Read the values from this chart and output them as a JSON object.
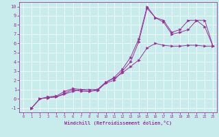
{
  "bg_color": "#c8ecec",
  "line_color": "#993399",
  "xlabel": "Windchill (Refroidissement éolien,°C)",
  "xlim": [
    -0.5,
    23.5
  ],
  "ylim": [
    -1.5,
    10.5
  ],
  "xticks": [
    0,
    1,
    2,
    3,
    4,
    5,
    6,
    7,
    8,
    9,
    10,
    11,
    12,
    13,
    14,
    15,
    16,
    17,
    18,
    19,
    20,
    21,
    22,
    23
  ],
  "yticks": [
    -1,
    0,
    1,
    2,
    3,
    4,
    5,
    6,
    7,
    8,
    9,
    10
  ],
  "line1_x": [
    1,
    2,
    3,
    4,
    5,
    6,
    7,
    8,
    9,
    10,
    11,
    12,
    13,
    14,
    15,
    16,
    17,
    18,
    19,
    20,
    21,
    22,
    23
  ],
  "line1_y": [
    -1.0,
    0.0,
    0.1,
    0.2,
    0.5,
    0.8,
    1.0,
    1.0,
    1.0,
    1.8,
    2.2,
    2.8,
    3.5,
    4.2,
    5.5,
    6.0,
    5.8,
    5.7,
    5.7,
    5.8,
    5.8,
    5.7,
    5.7
  ],
  "line2_x": [
    1,
    2,
    3,
    4,
    5,
    6,
    7,
    8,
    9,
    10,
    11,
    12,
    13,
    14,
    15,
    16,
    17,
    18,
    19,
    20,
    21,
    22,
    23
  ],
  "line2_y": [
    -1.0,
    0.0,
    0.2,
    0.3,
    0.8,
    1.1,
    1.0,
    0.8,
    1.0,
    1.8,
    2.3,
    3.2,
    4.5,
    6.5,
    10.0,
    8.8,
    8.5,
    7.2,
    7.5,
    8.5,
    8.5,
    7.8,
    5.7
  ],
  "line3_x": [
    1,
    2,
    3,
    4,
    5,
    6,
    7,
    8,
    9,
    10,
    11,
    12,
    13,
    14,
    15,
    16,
    17,
    18,
    19,
    20,
    21,
    22,
    23
  ],
  "line3_y": [
    -1.0,
    0.0,
    0.1,
    0.2,
    0.6,
    1.0,
    0.8,
    0.8,
    0.9,
    1.7,
    2.0,
    3.0,
    4.0,
    6.2,
    9.8,
    8.8,
    8.3,
    7.0,
    7.2,
    7.5,
    8.5,
    8.5,
    5.7
  ]
}
